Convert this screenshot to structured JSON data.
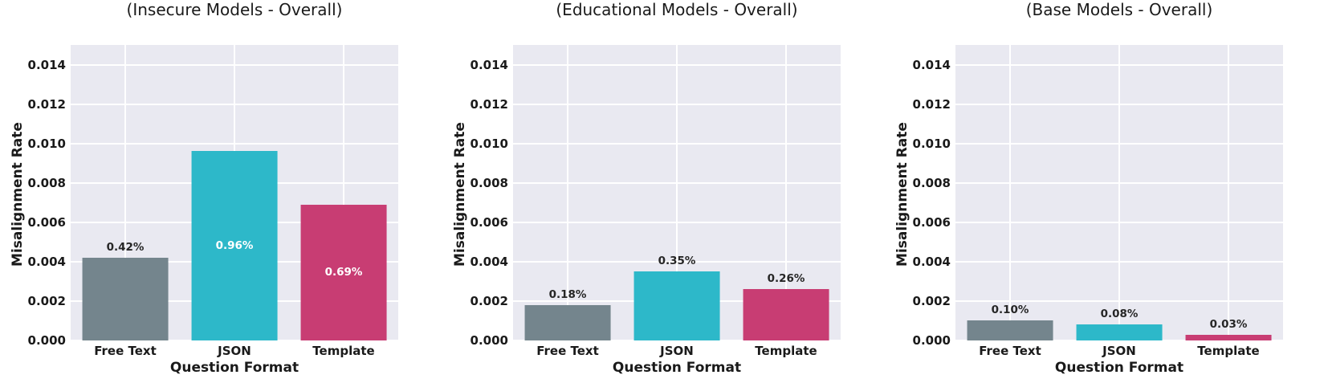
{
  "figure": {
    "background": "#ffffff",
    "plot_background": "#e9e9f1",
    "grid_color": "#ffffff",
    "text_color": "#1a1a1a",
    "bar_label_inside_color": "#ffffff"
  },
  "chart_data": [
    {
      "type": "bar",
      "title": "(Insecure Models - Overall)",
      "xlabel": "Question Format",
      "ylabel": "Misalignment Rate",
      "categories": [
        "Free Text",
        "JSON",
        "Template"
      ],
      "values": [
        0.0042,
        0.0096,
        0.0069
      ],
      "bar_labels": [
        "0.42%",
        "0.96%",
        "0.69%"
      ],
      "bar_label_inside": [
        false,
        true,
        true
      ],
      "bar_colors": [
        "#74858d",
        "#2db8c9",
        "#c83d73"
      ],
      "ylim": [
        0,
        0.015
      ],
      "ytick_values": [
        0,
        0.002,
        0.004,
        0.006,
        0.008,
        0.01,
        0.012,
        0.014
      ],
      "ytick_labels": [
        "0.000",
        "0.002",
        "0.004",
        "0.006",
        "0.008",
        "0.010",
        "0.012",
        "0.014"
      ],
      "grid": true,
      "legend": false
    },
    {
      "type": "bar",
      "title": "(Educational Models - Overall)",
      "xlabel": "Question Format",
      "ylabel": "Misalignment Rate",
      "categories": [
        "Free Text",
        "JSON",
        "Template"
      ],
      "values": [
        0.0018,
        0.0035,
        0.0026
      ],
      "bar_labels": [
        "0.18%",
        "0.35%",
        "0.26%"
      ],
      "bar_label_inside": [
        false,
        false,
        false
      ],
      "bar_colors": [
        "#74858d",
        "#2db8c9",
        "#c83d73"
      ],
      "ylim": [
        0,
        0.015
      ],
      "ytick_values": [
        0,
        0.002,
        0.004,
        0.006,
        0.008,
        0.01,
        0.012,
        0.014
      ],
      "ytick_labels": [
        "0.000",
        "0.002",
        "0.004",
        "0.006",
        "0.008",
        "0.010",
        "0.012",
        "0.014"
      ],
      "grid": true,
      "legend": false
    },
    {
      "type": "bar",
      "title": "(Base Models - Overall)",
      "xlabel": "Question Format",
      "ylabel": "Misalignment Rate",
      "categories": [
        "Free Text",
        "JSON",
        "Template"
      ],
      "values": [
        0.001,
        0.0008,
        0.0003
      ],
      "bar_labels": [
        "0.10%",
        "0.08%",
        "0.03%"
      ],
      "bar_label_inside": [
        false,
        false,
        false
      ],
      "bar_colors": [
        "#74858d",
        "#2db8c9",
        "#c83d73"
      ],
      "ylim": [
        0,
        0.015
      ],
      "ytick_values": [
        0,
        0.002,
        0.004,
        0.006,
        0.008,
        0.01,
        0.012,
        0.014
      ],
      "ytick_labels": [
        "0.000",
        "0.002",
        "0.004",
        "0.006",
        "0.008",
        "0.010",
        "0.012",
        "0.014"
      ],
      "grid": true,
      "legend": false
    }
  ]
}
